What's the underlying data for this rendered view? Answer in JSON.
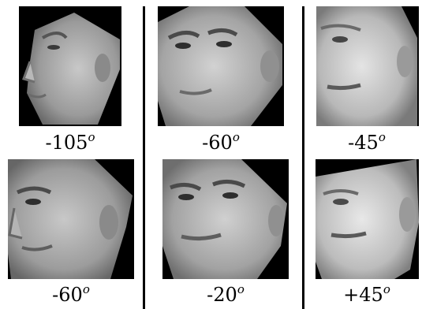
{
  "panels": [
    {
      "angle": "-105",
      "unit": "o"
    },
    {
      "angle": "-60",
      "unit": "o"
    },
    {
      "angle": "-45",
      "unit": "o"
    },
    {
      "angle": "-60",
      "unit": "o"
    },
    {
      "angle": "-20",
      "unit": "o"
    },
    {
      "angle": "+45",
      "unit": "o"
    }
  ],
  "colors": {
    "background": "#000000",
    "skin_light": "#d4d4d4",
    "skin_mid": "#a8a8a8",
    "skin_dark": "#5a5a5a",
    "divider": "#000000"
  }
}
